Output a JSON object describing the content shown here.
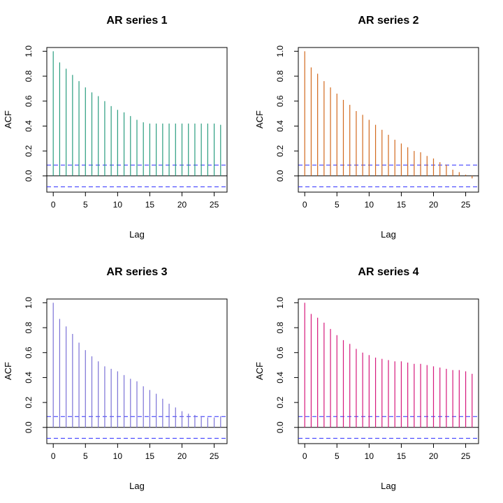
{
  "chart_data": [
    {
      "type": "bar",
      "title": "AR series 1",
      "xlabel": "Lag",
      "ylabel": "ACF",
      "color": "#2a9d7f",
      "ci_color": "#2b2bff",
      "ci": 0.087,
      "xlim": [
        -1,
        27
      ],
      "ylim": [
        -0.13,
        1.03
      ],
      "xticks": [
        "0",
        "5",
        "10",
        "15",
        "20",
        "25"
      ],
      "yticks": [
        "0.0",
        "0.2",
        "0.4",
        "0.6",
        "0.8",
        "1.0"
      ],
      "lags": [
        0,
        1,
        2,
        3,
        4,
        5,
        6,
        7,
        8,
        9,
        10,
        11,
        12,
        13,
        14,
        15,
        16,
        17,
        18,
        19,
        20,
        21,
        22,
        23,
        24,
        25,
        26
      ],
      "values": [
        1.0,
        0.91,
        0.86,
        0.81,
        0.76,
        0.71,
        0.67,
        0.64,
        0.6,
        0.56,
        0.53,
        0.51,
        0.48,
        0.45,
        0.43,
        0.42,
        0.42,
        0.42,
        0.42,
        0.42,
        0.42,
        0.42,
        0.42,
        0.42,
        0.42,
        0.42,
        0.41
      ]
    },
    {
      "type": "bar",
      "title": "AR series 2",
      "xlabel": "Lag",
      "ylabel": "ACF",
      "color": "#d2691e",
      "ci_color": "#2b2bff",
      "ci": 0.087,
      "xlim": [
        -1,
        27
      ],
      "ylim": [
        -0.13,
        1.03
      ],
      "xticks": [
        "0",
        "5",
        "10",
        "15",
        "20",
        "25"
      ],
      "yticks": [
        "0.0",
        "0.2",
        "0.4",
        "0.6",
        "0.8",
        "1.0"
      ],
      "lags": [
        0,
        1,
        2,
        3,
        4,
        5,
        6,
        7,
        8,
        9,
        10,
        11,
        12,
        13,
        14,
        15,
        16,
        17,
        18,
        19,
        20,
        21,
        22,
        23,
        24,
        25,
        26
      ],
      "values": [
        1.0,
        0.87,
        0.82,
        0.76,
        0.71,
        0.66,
        0.61,
        0.57,
        0.52,
        0.49,
        0.45,
        0.41,
        0.37,
        0.33,
        0.29,
        0.26,
        0.23,
        0.2,
        0.19,
        0.16,
        0.14,
        0.11,
        0.09,
        0.05,
        0.03,
        0.01,
        -0.02
      ]
    },
    {
      "type": "bar",
      "title": "AR series 3",
      "xlabel": "Lag",
      "ylabel": "ACF",
      "color": "#7b72d6",
      "ci_color": "#2b2bff",
      "ci": 0.087,
      "xlim": [
        -1,
        27
      ],
      "ylim": [
        -0.13,
        1.03
      ],
      "xticks": [
        "0",
        "5",
        "10",
        "15",
        "20",
        "25"
      ],
      "yticks": [
        "0.0",
        "0.2",
        "0.4",
        "0.6",
        "0.8",
        "1.0"
      ],
      "lags": [
        0,
        1,
        2,
        3,
        4,
        5,
        6,
        7,
        8,
        9,
        10,
        11,
        12,
        13,
        14,
        15,
        16,
        17,
        18,
        19,
        20,
        21,
        22,
        23,
        24,
        25,
        26
      ],
      "values": [
        1.0,
        0.87,
        0.81,
        0.75,
        0.68,
        0.62,
        0.57,
        0.53,
        0.49,
        0.47,
        0.45,
        0.42,
        0.39,
        0.37,
        0.33,
        0.3,
        0.27,
        0.23,
        0.19,
        0.16,
        0.13,
        0.11,
        0.1,
        0.09,
        0.08,
        0.08,
        0.09
      ]
    },
    {
      "type": "bar",
      "title": "AR series 4",
      "xlabel": "Lag",
      "ylabel": "ACF",
      "color": "#d6197c",
      "ci_color": "#2b2bff",
      "ci": 0.087,
      "xlim": [
        -1,
        27
      ],
      "ylim": [
        -0.13,
        1.03
      ],
      "xticks": [
        "0",
        "5",
        "10",
        "15",
        "20",
        "25"
      ],
      "yticks": [
        "0.0",
        "0.2",
        "0.4",
        "0.6",
        "0.8",
        "1.0"
      ],
      "lags": [
        0,
        1,
        2,
        3,
        4,
        5,
        6,
        7,
        8,
        9,
        10,
        11,
        12,
        13,
        14,
        15,
        16,
        17,
        18,
        19,
        20,
        21,
        22,
        23,
        24,
        25,
        26
      ],
      "values": [
        1.0,
        0.91,
        0.88,
        0.84,
        0.79,
        0.74,
        0.7,
        0.67,
        0.63,
        0.6,
        0.58,
        0.56,
        0.55,
        0.54,
        0.53,
        0.53,
        0.52,
        0.51,
        0.51,
        0.5,
        0.49,
        0.48,
        0.47,
        0.46,
        0.46,
        0.45,
        0.43
      ]
    }
  ]
}
